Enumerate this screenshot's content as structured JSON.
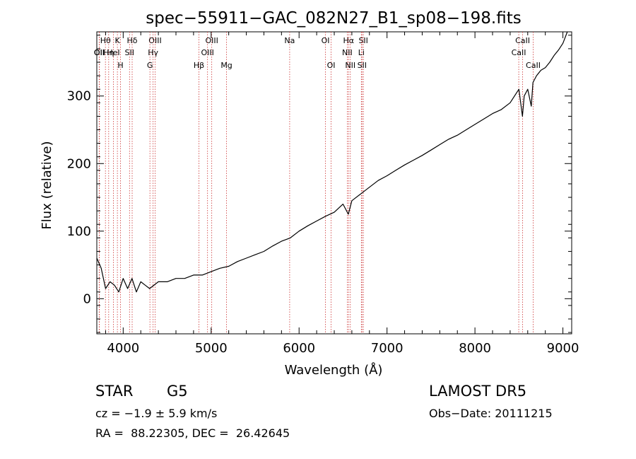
{
  "chart_data": {
    "type": "line",
    "title": "spec−55911−GAC_082N27_B1_sp08−198.fits",
    "xlabel": "Wavelength (Å)",
    "ylabel": "Flux (relative)",
    "xlim": [
      3700,
      9100
    ],
    "ylim": [
      -52,
      395
    ],
    "xticks": [
      4000,
      5000,
      6000,
      7000,
      8000,
      9000
    ],
    "yticks": [
      0,
      100,
      200,
      300
    ],
    "grid": false,
    "series": [
      {
        "x": [
          3700,
          3750,
          3800,
          3850,
          3900,
          3950,
          4000,
          4050,
          4100,
          4150,
          4200,
          4250,
          4300,
          4400,
          4500,
          4600,
          4700,
          4800,
          4900,
          5000,
          5100,
          5200,
          5300,
          5400,
          5500,
          5600,
          5700,
          5800,
          5900,
          6000,
          6100,
          6200,
          6300,
          6400,
          6500,
          6560,
          6600,
          6700,
          6800,
          6900,
          7000,
          7100,
          7200,
          7300,
          7400,
          7500,
          7600,
          7700,
          7800,
          7900,
          8000,
          8100,
          8200,
          8300,
          8400,
          8450,
          8500,
          8540,
          8560,
          8600,
          8640,
          8660,
          8700,
          8750,
          8800,
          8850,
          8900,
          8950,
          9000,
          9050
        ],
        "y": [
          60,
          45,
          15,
          25,
          20,
          10,
          30,
          15,
          30,
          10,
          25,
          20,
          15,
          25,
          25,
          30,
          30,
          35,
          35,
          40,
          45,
          48,
          55,
          60,
          65,
          70,
          78,
          85,
          90,
          100,
          108,
          115,
          122,
          128,
          140,
          125,
          145,
          155,
          165,
          175,
          182,
          190,
          198,
          205,
          212,
          220,
          228,
          236,
          242,
          250,
          258,
          266,
          274,
          280,
          290,
          300,
          310,
          270,
          300,
          310,
          285,
          320,
          330,
          338,
          342,
          350,
          360,
          368,
          378,
          395
        ]
      }
    ],
    "lines": [
      {
        "label": "Hθ",
        "x": 3798
      },
      {
        "label": "K",
        "x": 3934
      },
      {
        "label": "Hδ",
        "x": 4102
      },
      {
        "label": "OIII",
        "x": 4363
      },
      {
        "label": "OIII",
        "x": 5007
      },
      {
        "label": "Na",
        "x": 5893
      },
      {
        "label": "OI",
        "x": 6300
      },
      {
        "label": "Hα",
        "x": 6563
      },
      {
        "label": "SII",
        "x": 6731
      },
      {
        "label": "CaII",
        "x": 8542
      },
      {
        "label": "OII",
        "x": 3727
      },
      {
        "label": "HeI",
        "x": 3889
      },
      {
        "label": "SII",
        "x": 4072
      },
      {
        "label": "Hγ",
        "x": 4340
      },
      {
        "label": "OIII",
        "x": 4959
      },
      {
        "label": "NII",
        "x": 6548
      },
      {
        "label": "Li",
        "x": 6708
      },
      {
        "label": "CaII",
        "x": 8498
      },
      {
        "label": "OII",
        "x": 3729
      },
      {
        "label": "Hη",
        "x": 3835
      },
      {
        "label": "H",
        "x": 3969
      },
      {
        "label": "G",
        "x": 4304
      },
      {
        "label": "Hβ",
        "x": 4861
      },
      {
        "label": "Mg",
        "x": 5175
      },
      {
        "label": "OI",
        "x": 6364
      },
      {
        "label": "NII",
        "x": 6583
      },
      {
        "label": "SII",
        "x": 6716
      },
      {
        "label": "CaII",
        "x": 8662
      }
    ]
  },
  "info": {
    "object_type": "STAR",
    "subclass": "G5",
    "survey": "LAMOST DR5",
    "cz": "cz = −1.9 ± 5.9 km/s",
    "obs_date": "Obs−Date: 20111215",
    "radec": "RA =  88.22305, DEC =  26.42645"
  },
  "colors": {
    "line": "#000000",
    "marker": "#cc3333"
  }
}
